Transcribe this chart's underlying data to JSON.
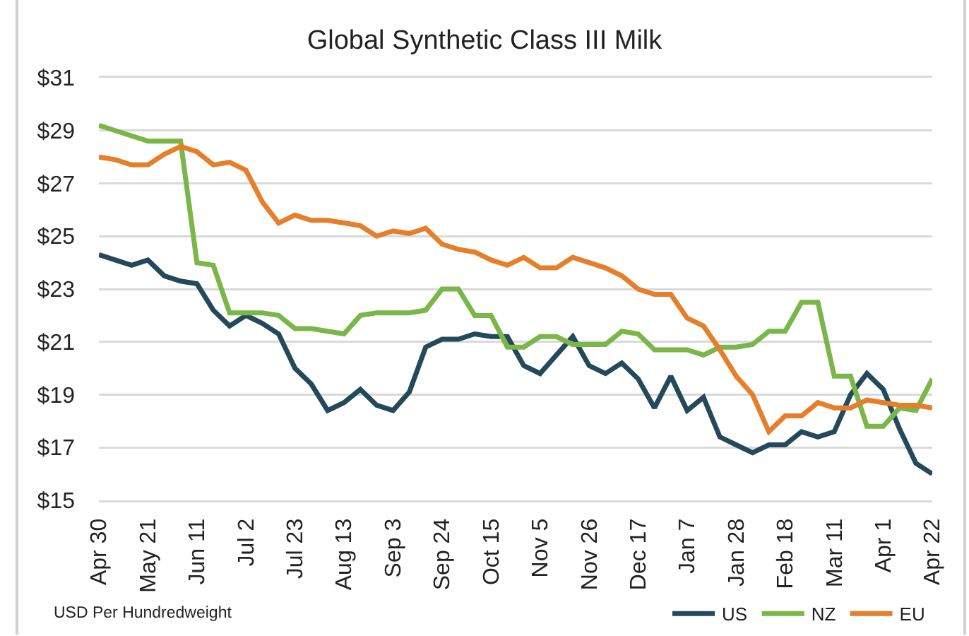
{
  "chart_data": {
    "type": "line",
    "title": "Global Synthetic Class III Milk",
    "categories": [
      "Apr 30",
      null,
      null,
      "May 21",
      null,
      null,
      "Jun 11",
      null,
      null,
      "Jul 2",
      null,
      null,
      "Jul 23",
      null,
      null,
      "Aug 13",
      null,
      null,
      "Sep 3",
      null,
      null,
      "Sep 24",
      null,
      null,
      "Oct 15",
      null,
      null,
      "Nov 5",
      null,
      null,
      "Nov 26",
      null,
      null,
      "Dec 17",
      null,
      null,
      "Jan 7",
      null,
      null,
      "Jan 28",
      null,
      null,
      "Feb 18",
      null,
      null,
      "Mar 11",
      null,
      null,
      "Apr 1",
      null,
      null,
      "Apr 22"
    ],
    "ylim": [
      15,
      31
    ],
    "yticks": [
      {
        "value": 15,
        "label": "$15"
      },
      {
        "value": 17,
        "label": "$17"
      },
      {
        "value": 19,
        "label": "$19"
      },
      {
        "value": 21,
        "label": "$21"
      },
      {
        "value": 23,
        "label": "$23"
      },
      {
        "value": 25,
        "label": "$25"
      },
      {
        "value": 27,
        "label": "$27"
      },
      {
        "value": 29,
        "label": "$29"
      },
      {
        "value": 31,
        "label": "$31"
      }
    ],
    "grid": "y",
    "legend": "bottom right",
    "line_style": "solid",
    "annotations": [
      "USD Per Hundredweight"
    ],
    "series": [
      {
        "name": "US",
        "color": "#23495a",
        "values": [
          24.3,
          24.1,
          23.9,
          24.1,
          23.5,
          23.3,
          23.2,
          22.2,
          21.6,
          22.0,
          21.7,
          21.3,
          20.0,
          19.4,
          18.4,
          18.7,
          19.2,
          18.6,
          18.4,
          19.1,
          20.8,
          21.1,
          21.1,
          21.3,
          21.2,
          21.2,
          20.1,
          19.8,
          20.5,
          21.2,
          20.1,
          19.8,
          20.2,
          19.6,
          18.5,
          19.7,
          18.4,
          18.9,
          17.4,
          17.1,
          16.8,
          17.1,
          17.1,
          17.6,
          17.4,
          17.6,
          19.0,
          19.8,
          19.2,
          17.7,
          16.4,
          16.0
        ]
      },
      {
        "name": "NZ",
        "color": "#7ab648",
        "values": [
          29.2,
          29.0,
          28.8,
          28.6,
          28.6,
          28.6,
          24.0,
          23.9,
          22.1,
          22.1,
          22.1,
          22.0,
          21.5,
          21.5,
          21.4,
          21.3,
          22.0,
          22.1,
          22.1,
          22.1,
          22.2,
          23.0,
          23.0,
          22.0,
          22.0,
          20.8,
          20.8,
          21.2,
          21.2,
          20.9,
          20.9,
          20.9,
          21.4,
          21.3,
          20.7,
          20.7,
          20.7,
          20.5,
          20.8,
          20.8,
          20.9,
          21.4,
          21.4,
          22.5,
          22.5,
          19.7,
          19.7,
          17.8,
          17.8,
          18.5,
          18.4,
          19.6
        ]
      },
      {
        "name": "EU",
        "color": "#e57f2c",
        "values": [
          28.0,
          27.9,
          27.7,
          27.7,
          28.1,
          28.4,
          28.2,
          27.7,
          27.8,
          27.5,
          26.3,
          25.5,
          25.8,
          25.6,
          25.6,
          25.5,
          25.4,
          25.0,
          25.2,
          25.1,
          25.3,
          24.7,
          24.5,
          24.4,
          24.1,
          23.9,
          24.2,
          23.8,
          23.8,
          24.2,
          24.0,
          23.8,
          23.5,
          23.0,
          22.8,
          22.8,
          21.9,
          21.6,
          20.7,
          19.7,
          19.0,
          17.6,
          18.2,
          18.2,
          18.7,
          18.5,
          18.5,
          18.8,
          18.7,
          18.6,
          18.6,
          18.5
        ]
      }
    ]
  }
}
